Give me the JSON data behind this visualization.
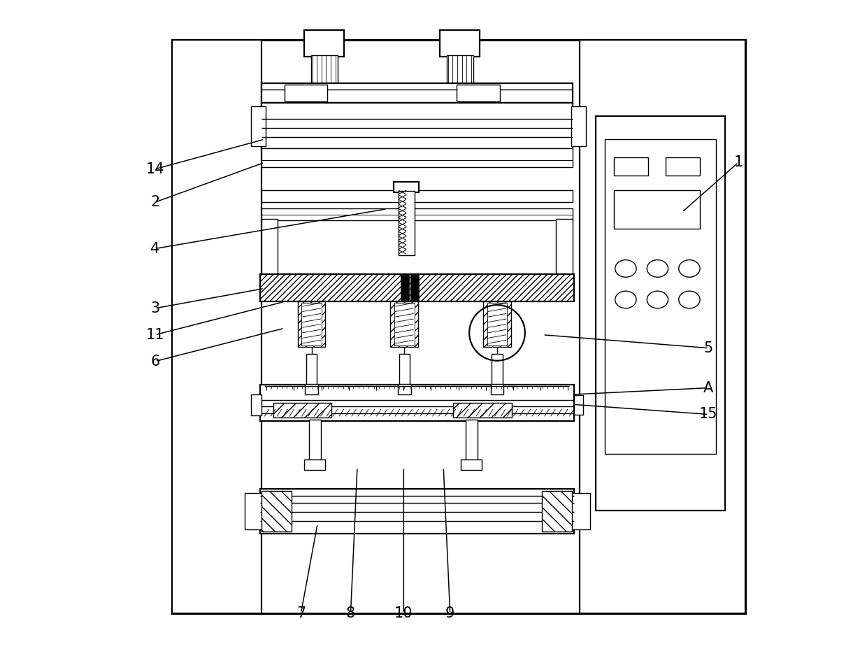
{
  "bg_color": "#ffffff",
  "line_color": "#000000",
  "fig_width": 12.4,
  "fig_height": 9.48,
  "annotations": [
    [
      "1",
      [
        0.96,
        0.755
      ],
      [
        0.875,
        0.68
      ]
    ],
    [
      "14",
      [
        0.08,
        0.745
      ],
      [
        0.245,
        0.79
      ]
    ],
    [
      "2",
      [
        0.08,
        0.695
      ],
      [
        0.245,
        0.755
      ]
    ],
    [
      "4",
      [
        0.08,
        0.625
      ],
      [
        0.43,
        0.685
      ]
    ],
    [
      "3",
      [
        0.08,
        0.535
      ],
      [
        0.245,
        0.565
      ]
    ],
    [
      "11",
      [
        0.08,
        0.495
      ],
      [
        0.275,
        0.545
      ]
    ],
    [
      "6",
      [
        0.08,
        0.455
      ],
      [
        0.275,
        0.505
      ]
    ],
    [
      "5",
      [
        0.915,
        0.475
      ],
      [
        0.665,
        0.495
      ]
    ],
    [
      "A",
      [
        0.915,
        0.415
      ],
      [
        0.71,
        0.405
      ]
    ],
    [
      "15",
      [
        0.915,
        0.375
      ],
      [
        0.71,
        0.39
      ]
    ],
    [
      "7",
      [
        0.3,
        0.075
      ],
      [
        0.325,
        0.21
      ]
    ],
    [
      "8",
      [
        0.375,
        0.075
      ],
      [
        0.385,
        0.295
      ]
    ],
    [
      "10",
      [
        0.455,
        0.075
      ],
      [
        0.455,
        0.295
      ]
    ],
    [
      "9",
      [
        0.525,
        0.075
      ],
      [
        0.515,
        0.295
      ]
    ]
  ]
}
